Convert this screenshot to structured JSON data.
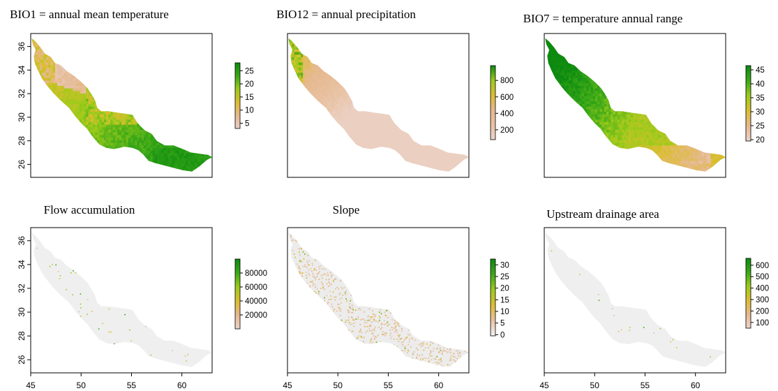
{
  "figure_axes": {
    "x_ticks": [
      "45",
      "50",
      "55",
      "60"
    ],
    "y_ticks": [
      "26",
      "28",
      "30",
      "32",
      "34",
      "36"
    ],
    "xlim": [
      45,
      63
    ],
    "ylim": [
      24.9,
      37.1
    ]
  },
  "chart_data": [
    {
      "type": "heatmap",
      "title": "BIO1 = annual mean temperature",
      "legend_ticks": [
        "25",
        "20",
        "15",
        "10",
        "5"
      ],
      "legend_range": [
        3,
        28
      ],
      "colors": [
        "#e8cfc8",
        "#e6b98f",
        "#dcbd30",
        "#9ccb1a",
        "#3aa818",
        "#0d8a10"
      ],
      "pattern": "warm-south-east"
    },
    {
      "type": "heatmap",
      "title": "BIO12 = annual precipitation",
      "legend_ticks": [
        "800",
        "600",
        "400",
        "200"
      ],
      "legend_range": [
        80,
        980
      ],
      "colors": [
        "#ecd3cb",
        "#e8c2a2",
        "#e6b98f",
        "#dcbd30",
        "#9ccb1a",
        "#0d8a10"
      ],
      "pattern": "wet-north-west"
    },
    {
      "type": "heatmap",
      "title": "BIO7 = temperature annual range",
      "legend_ticks": [
        "45",
        "40",
        "35",
        "30",
        "25",
        "20"
      ],
      "legend_range": [
        19.5,
        46.5
      ],
      "colors": [
        "#ecd3cb",
        "#e6b98f",
        "#dcbd30",
        "#9ccb1a",
        "#3aa818",
        "#0d8a10"
      ],
      "pattern": "range-north-west"
    },
    {
      "type": "heatmap",
      "title": "Flow accumulation",
      "legend_ticks": [
        "80000",
        "60000",
        "40000",
        "20000"
      ],
      "legend_range": [
        0,
        100000
      ],
      "colors": [
        "#ecd3cb",
        "#e6b98f",
        "#dcbd30",
        "#9ccb1a",
        "#3aa818",
        "#0d8a10"
      ],
      "pattern": "sparse-flow"
    },
    {
      "type": "heatmap",
      "title": "Slope",
      "legend_ticks": [
        "30",
        "25",
        "20",
        "15",
        "10",
        "5",
        "0"
      ],
      "legend_range": [
        -0.5,
        32.5
      ],
      "colors": [
        "#f2f2f2",
        "#e8c2a2",
        "#dcbd30",
        "#9ccb1a",
        "#3aa818",
        "#0d8a10"
      ],
      "pattern": "speckle"
    },
    {
      "type": "heatmap",
      "title": "Upstream drainage area",
      "legend_ticks": [
        "600",
        "500",
        "400",
        "300",
        "200",
        "100"
      ],
      "legend_range": [
        50,
        660
      ],
      "colors": [
        "#ecd3cb",
        "#e6b98f",
        "#dcbd30",
        "#9ccb1a",
        "#3aa818",
        "#0d8a10"
      ],
      "pattern": "sparse-drainage"
    }
  ]
}
